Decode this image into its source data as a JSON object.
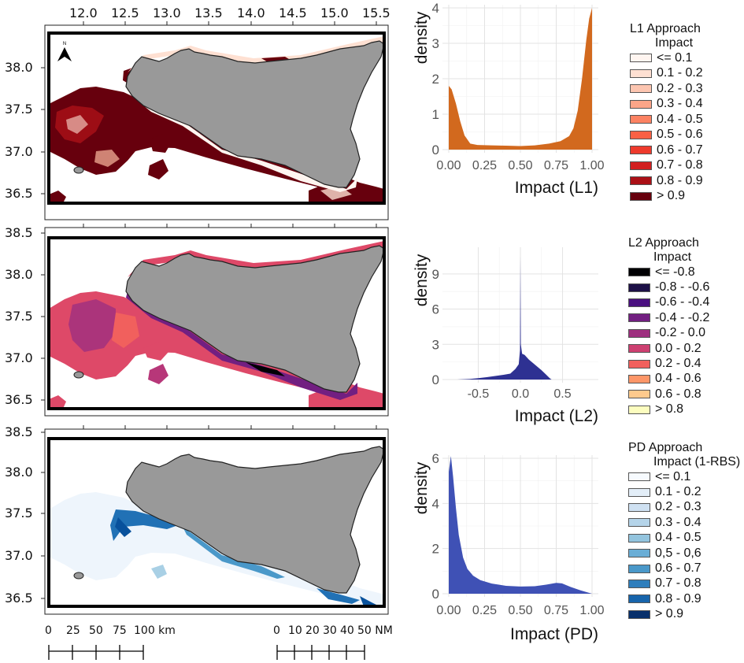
{
  "maps": {
    "lon_ticks": [
      "12.0",
      "12.5",
      "13.0",
      "13.5",
      "14.0",
      "14.5",
      "15.0",
      "15.5"
    ],
    "lat_ticks_top": [
      "38.0",
      "37.5",
      "37.0",
      "36.5"
    ],
    "lat_ticks": [
      "38.5",
      "38.0",
      "37.5",
      "37.0",
      "36.5"
    ],
    "north_label": "N",
    "land_color": "#999999",
    "panels": [
      {
        "name": "L1 Approach",
        "fill_colors": [
          "#67000d",
          "#a50f15",
          "#fee0d2"
        ]
      },
      {
        "name": "L2 Approach",
        "fill_colors": [
          "#8c2981",
          "#de4968",
          "#fe9f6d",
          "#000004"
        ]
      },
      {
        "name": "PD Approach",
        "fill_colors": [
          "#08519c",
          "#2171b5",
          "#c6dbef"
        ]
      }
    ],
    "scale_km": {
      "labels": [
        "0",
        "25",
        "50",
        "75",
        "100 km"
      ]
    },
    "scale_nm": {
      "labels": [
        "0",
        "10",
        "20",
        "30",
        "40",
        "50 NM"
      ]
    }
  },
  "legends": [
    {
      "title": "L1 Approach",
      "subtitle": "Impact",
      "items": [
        {
          "label": "<= 0.1",
          "color": "#fff5f0"
        },
        {
          "label": "0.1 - 0.2",
          "color": "#fee0d2"
        },
        {
          "label": "0.2 - 0.3",
          "color": "#fcc5b0"
        },
        {
          "label": "0.3 - 0.4",
          "color": "#fca588"
        },
        {
          "label": "0.4 - 0.5",
          "color": "#fc8262"
        },
        {
          "label": "0.5 - 0.6",
          "color": "#fa6044"
        },
        {
          "label": "0.6 - 0.7",
          "color": "#ee3a2c"
        },
        {
          "label": "0.7 - 0.8",
          "color": "#d21f20"
        },
        {
          "label": "0.8 - 0.9",
          "color": "#ab1016"
        },
        {
          "label": "> 0.9",
          "color": "#67000d"
        }
      ]
    },
    {
      "title": "L2 Approach",
      "subtitle": "Impact",
      "items": [
        {
          "label": "<= -0.8",
          "color": "#000004"
        },
        {
          "label": "-0.8 - -0.6",
          "color": "#1d1147"
        },
        {
          "label": "-0.6 - -0.4",
          "color": "#4a1080"
        },
        {
          "label": "-0.4 - -0.2",
          "color": "#721f81"
        },
        {
          "label": "-0.2 - 0.0",
          "color": "#9e2f7f"
        },
        {
          "label": "0.0 - 0.2",
          "color": "#cd4071"
        },
        {
          "label": "0.2 - 0.4",
          "color": "#f1605d"
        },
        {
          "label": "0.4 - 0.6",
          "color": "#fd9668"
        },
        {
          "label": "0.6 - 0.8",
          "color": "#feca8d"
        },
        {
          "label": "> 0.8",
          "color": "#fcfdbf"
        }
      ]
    },
    {
      "title": "PD Approach",
      "subtitle": "Impact (1-RBS)",
      "items": [
        {
          "label": "<= 0.1",
          "color": "#f7fbff"
        },
        {
          "label": "0.1 - 0.2",
          "color": "#e3eef8"
        },
        {
          "label": "0.2 - 0.3",
          "color": "#cfe1f2"
        },
        {
          "label": "0.3 - 0.4",
          "color": "#b5d4e9"
        },
        {
          "label": "0.4 - 0.5",
          "color": "#93c4de"
        },
        {
          "label": "0,5 - 0,6",
          "color": "#6aaed6"
        },
        {
          "label": "0.6 - 0.7",
          "color": "#4a98c9"
        },
        {
          "label": "0.7 - 0.8",
          "color": "#2e7ebc"
        },
        {
          "label": "0.8 - 0.9",
          "color": "#1764ab"
        },
        {
          "label": "> 0.9",
          "color": "#08306b"
        }
      ]
    }
  ],
  "chart_data": [
    {
      "type": "area",
      "title": "",
      "xlabel": "Impact (L1)",
      "ylabel": "density",
      "xlim": [
        0,
        1
      ],
      "ylim": [
        0,
        4
      ],
      "xticks": [
        "0.00",
        "0.25",
        "0.50",
        "0.75",
        "1.00"
      ],
      "xtick_values": [
        0,
        0.25,
        0.5,
        0.75,
        1.0
      ],
      "yticks": [
        "0",
        "1",
        "2",
        "3",
        "4"
      ],
      "ytick_values": [
        0,
        1,
        2,
        3,
        4
      ],
      "grid": true,
      "color": "#d2691e",
      "x": [
        0.0,
        0.02,
        0.05,
        0.08,
        0.11,
        0.15,
        0.2,
        0.3,
        0.4,
        0.5,
        0.6,
        0.7,
        0.78,
        0.84,
        0.87,
        0.9,
        0.93,
        0.96,
        0.98,
        1.0
      ],
      "y": [
        1.8,
        1.7,
        1.3,
        0.8,
        0.4,
        0.17,
        0.13,
        0.12,
        0.11,
        0.1,
        0.12,
        0.17,
        0.24,
        0.38,
        0.6,
        1.1,
        2.0,
        3.1,
        3.7,
        4.0
      ]
    },
    {
      "type": "area",
      "title": "",
      "xlabel": "Impact (L2)",
      "ylabel": "density",
      "xlim": [
        -0.85,
        0.85
      ],
      "ylim": [
        0,
        11
      ],
      "xticks": [
        "-0.5",
        "0.0",
        "0.5"
      ],
      "xtick_values": [
        -0.5,
        0.0,
        0.5
      ],
      "yticks": [
        "0",
        "3",
        "6",
        "9"
      ],
      "ytick_values": [
        0,
        3,
        6,
        9
      ],
      "grid": true,
      "color": "#2e3192",
      "x": [
        -0.75,
        -0.6,
        -0.5,
        -0.4,
        -0.3,
        -0.2,
        -0.12,
        -0.06,
        -0.02,
        -0.005,
        0.0,
        0.005,
        0.02,
        0.05,
        0.1,
        0.15,
        0.2,
        0.25,
        0.3,
        0.35,
        0.37
      ],
      "y": [
        0.0,
        0.05,
        0.12,
        0.2,
        0.3,
        0.4,
        0.5,
        0.9,
        1.3,
        2.5,
        10.5,
        3.0,
        2.2,
        2.1,
        1.7,
        1.4,
        1.1,
        0.8,
        0.45,
        0.1,
        0.0
      ]
    },
    {
      "type": "area",
      "title": "",
      "xlabel": "Impact (PD)",
      "ylabel": "density",
      "xlim": [
        0,
        1
      ],
      "ylim": [
        0,
        6
      ],
      "xticks": [
        "0.00",
        "0.25",
        "0.50",
        "0.75",
        "1.00"
      ],
      "xtick_values": [
        0,
        0.25,
        0.5,
        0.75,
        1.0
      ],
      "yticks": [
        "0",
        "2",
        "4",
        "6"
      ],
      "ytick_values": [
        0,
        2,
        4,
        6
      ],
      "grid": true,
      "color": "#3f51b5",
      "x": [
        0.0,
        0.015,
        0.03,
        0.05,
        0.07,
        0.1,
        0.13,
        0.17,
        0.22,
        0.3,
        0.4,
        0.5,
        0.6,
        0.68,
        0.75,
        0.79,
        0.85,
        0.92,
        1.0
      ],
      "y": [
        5.4,
        6.1,
        5.2,
        3.8,
        2.6,
        1.6,
        1.1,
        0.8,
        0.6,
        0.45,
        0.35,
        0.32,
        0.33,
        0.4,
        0.48,
        0.46,
        0.3,
        0.15,
        0.0
      ]
    }
  ]
}
